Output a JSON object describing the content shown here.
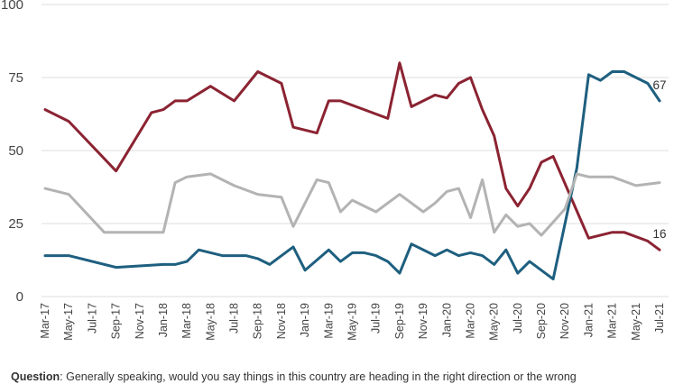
{
  "chart_data": {
    "type": "line",
    "x": [
      "Mar-17",
      "Apr-17",
      "May-17",
      "Jun-17",
      "Jul-17",
      "Aug-17",
      "Sep-17",
      "Oct-17",
      "Nov-17",
      "Dec-17",
      "Jan-18",
      "Feb-18",
      "Mar-18",
      "Apr-18",
      "May-18",
      "Jun-18",
      "Jul-18",
      "Aug-18",
      "Sep-18",
      "Oct-18",
      "Nov-18",
      "Dec-18",
      "Jan-19",
      "Feb-19",
      "Mar-19",
      "Apr-19",
      "May-19",
      "Jun-19",
      "Jul-19",
      "Aug-19",
      "Sep-19",
      "Oct-19",
      "Nov-19",
      "Dec-19",
      "Jan-20",
      "Feb-20",
      "Mar-20",
      "Apr-20",
      "May-20",
      "Jun-20",
      "Jul-20",
      "Aug-20",
      "Sep-20",
      "Oct-20",
      "Nov-20",
      "Dec-20",
      "Jan-21",
      "Feb-21",
      "Mar-21",
      "Apr-21",
      "May-21",
      "Jun-21",
      "Jul-21"
    ],
    "xtick_labels": [
      "Mar-17",
      "May-17",
      "Jul-17",
      "Sep-17",
      "Nov-17",
      "Jan-18",
      "Mar-18",
      "May-18",
      "Jul-18",
      "Sep-18",
      "Nov-18",
      "Jan-19",
      "Mar-19",
      "May-19",
      "Jul-19",
      "Sep-19",
      "Nov-19",
      "Jan-20",
      "Mar-20",
      "May-20",
      "Jul-20",
      "Sep-20",
      "Nov-20",
      "Jan-21",
      "Mar-21",
      "May-21",
      "Jul-21"
    ],
    "series": [
      {
        "color": "#8b2332",
        "points": [
          [
            "Mar-17",
            64
          ],
          [
            "May-17",
            60
          ],
          [
            "Sep-17",
            43
          ],
          [
            "Dec-17",
            63
          ],
          [
            "Jan-18",
            64
          ],
          [
            "Feb-18",
            67
          ],
          [
            "Mar-18",
            67
          ],
          [
            "May-18",
            72
          ],
          [
            "Jul-18",
            67
          ],
          [
            "Sep-18",
            77
          ],
          [
            "Nov-18",
            73
          ],
          [
            "Dec-18",
            58
          ],
          [
            "Feb-19",
            56
          ],
          [
            "Mar-19",
            67
          ],
          [
            "Apr-19",
            67
          ],
          [
            "Jun-19",
            64
          ],
          [
            "Aug-19",
            61
          ],
          [
            "Sep-19",
            80
          ],
          [
            "Oct-19",
            65
          ],
          [
            "Dec-19",
            69
          ],
          [
            "Jan-20",
            68
          ],
          [
            "Feb-20",
            73
          ],
          [
            "Mar-20",
            75
          ],
          [
            "Apr-20",
            64
          ],
          [
            "May-20",
            55
          ],
          [
            "Jun-20",
            37
          ],
          [
            "Jul-20",
            31
          ],
          [
            "Aug-20",
            37
          ],
          [
            "Sep-20",
            46
          ],
          [
            "Oct-20",
            48
          ],
          [
            "Jan-21",
            20
          ],
          [
            "Mar-21",
            22
          ],
          [
            "Apr-21",
            22
          ],
          [
            "Jun-21",
            19
          ],
          [
            "Jul-21",
            16
          ]
        ],
        "end_label": "16"
      },
      {
        "color": "#1e5f7f",
        "points": [
          [
            "Mar-17",
            14
          ],
          [
            "May-17",
            14
          ],
          [
            "Sep-17",
            10
          ],
          [
            "Jan-18",
            11
          ],
          [
            "Feb-18",
            11
          ],
          [
            "Mar-18",
            12
          ],
          [
            "Apr-18",
            16
          ],
          [
            "Jun-18",
            14
          ],
          [
            "Aug-18",
            14
          ],
          [
            "Sep-18",
            13
          ],
          [
            "Oct-18",
            11
          ],
          [
            "Dec-18",
            17
          ],
          [
            "Jan-19",
            9
          ],
          [
            "Mar-19",
            16
          ],
          [
            "Apr-19",
            12
          ],
          [
            "May-19",
            15
          ],
          [
            "Jun-19",
            15
          ],
          [
            "Jul-19",
            14
          ],
          [
            "Aug-19",
            12
          ],
          [
            "Sep-19",
            8
          ],
          [
            "Oct-19",
            18
          ],
          [
            "Dec-19",
            14
          ],
          [
            "Jan-20",
            16
          ],
          [
            "Feb-20",
            14
          ],
          [
            "Mar-20",
            15
          ],
          [
            "Apr-20",
            14
          ],
          [
            "May-20",
            11
          ],
          [
            "Jun-20",
            16
          ],
          [
            "Jul-20",
            8
          ],
          [
            "Aug-20",
            12
          ],
          [
            "Oct-20",
            6
          ],
          [
            "Dec-20",
            44
          ],
          [
            "Jan-21",
            76
          ],
          [
            "Feb-21",
            74
          ],
          [
            "Mar-21",
            77
          ],
          [
            "Apr-21",
            77
          ],
          [
            "May-21",
            75
          ],
          [
            "Jun-21",
            73
          ],
          [
            "Jul-21",
            67
          ]
        ],
        "end_label": "67"
      },
      {
        "color": "#b3b3b3",
        "points": [
          [
            "Mar-17",
            37
          ],
          [
            "May-17",
            35
          ],
          [
            "Aug-17",
            22
          ],
          [
            "Jan-18",
            22
          ],
          [
            "Feb-18",
            39
          ],
          [
            "Mar-18",
            41
          ],
          [
            "May-18",
            42
          ],
          [
            "Jul-18",
            38
          ],
          [
            "Sep-18",
            35
          ],
          [
            "Nov-18",
            34
          ],
          [
            "Dec-18",
            24
          ],
          [
            "Feb-19",
            40
          ],
          [
            "Mar-19",
            39
          ],
          [
            "Apr-19",
            29
          ],
          [
            "May-19",
            33
          ],
          [
            "Jul-19",
            29
          ],
          [
            "Sep-19",
            35
          ],
          [
            "Nov-19",
            29
          ],
          [
            "Dec-19",
            32
          ],
          [
            "Jan-20",
            36
          ],
          [
            "Feb-20",
            37
          ],
          [
            "Mar-20",
            27
          ],
          [
            "Apr-20",
            40
          ],
          [
            "May-20",
            22
          ],
          [
            "Jun-20",
            28
          ],
          [
            "Jul-20",
            24
          ],
          [
            "Aug-20",
            25
          ],
          [
            "Sep-20",
            21
          ],
          [
            "Nov-20",
            30
          ],
          [
            "Dec-20",
            42
          ],
          [
            "Jan-21",
            41
          ],
          [
            "Mar-21",
            41
          ],
          [
            "May-21",
            38
          ],
          [
            "Jul-21",
            39
          ]
        ]
      }
    ],
    "ylim": [
      0,
      100
    ],
    "yticks": [
      0,
      25,
      50,
      75,
      100
    ],
    "grid": true,
    "xlabel": "",
    "ylabel": ""
  },
  "footnote": {
    "bold": "Question",
    "text": ": Generally speaking, would you say things in this country are heading in the right direction or the wrong"
  }
}
